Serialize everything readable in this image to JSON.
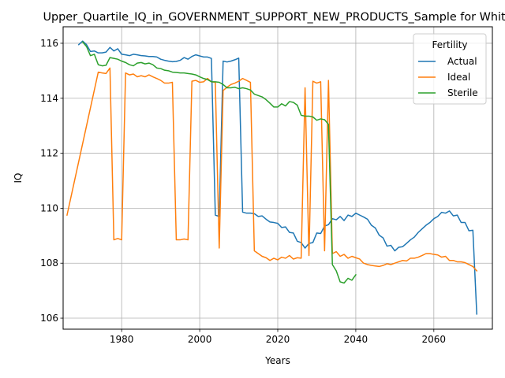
{
  "chart_data": {
    "type": "line",
    "title": "Upper_Quartile_IQ_in_GOVERNMENT_SUPPORT_NEW_PRODUCTS_Sample for White",
    "xlabel": "Years",
    "ylabel": "IQ",
    "xlim": [
      1965,
      2075
    ],
    "ylim": [
      105.6,
      116.6
    ],
    "xticks": [
      1980,
      2000,
      2020,
      2040,
      2060
    ],
    "yticks": [
      106,
      108,
      110,
      112,
      114,
      116
    ],
    "grid": true,
    "legend": {
      "title": "Fertility",
      "placement": "top-right"
    },
    "series": [
      {
        "name": "Actual",
        "color": "#1f77b4",
        "points": [
          [
            1969,
            115.95
          ],
          [
            1970,
            116.08
          ],
          [
            1971,
            115.95
          ],
          [
            1972,
            115.7
          ],
          [
            1973,
            115.72
          ],
          [
            1974,
            115.65
          ],
          [
            1975,
            115.65
          ],
          [
            1976,
            115.68
          ],
          [
            1977,
            115.85
          ],
          [
            1978,
            115.72
          ],
          [
            1979,
            115.8
          ],
          [
            1980,
            115.6
          ],
          [
            1981,
            115.58
          ],
          [
            1982,
            115.55
          ],
          [
            1983,
            115.6
          ],
          [
            1984,
            115.58
          ],
          [
            1985,
            115.55
          ],
          [
            1986,
            115.54
          ],
          [
            1987,
            115.52
          ],
          [
            1988,
            115.52
          ],
          [
            1989,
            115.5
          ],
          [
            1990,
            115.42
          ],
          [
            1991,
            115.38
          ],
          [
            1992,
            115.35
          ],
          [
            1993,
            115.33
          ],
          [
            1994,
            115.34
          ],
          [
            1995,
            115.38
          ],
          [
            1996,
            115.48
          ],
          [
            1997,
            115.42
          ],
          [
            1998,
            115.52
          ],
          [
            1999,
            115.58
          ],
          [
            2000,
            115.54
          ],
          [
            2001,
            115.5
          ],
          [
            2002,
            115.5
          ],
          [
            2003,
            115.45
          ],
          [
            2004,
            109.75
          ],
          [
            2005,
            109.7
          ],
          [
            2006,
            115.35
          ],
          [
            2007,
            115.32
          ],
          [
            2008,
            115.35
          ],
          [
            2009,
            115.4
          ],
          [
            2010,
            115.46
          ],
          [
            2011,
            109.86
          ],
          [
            2012,
            109.82
          ],
          [
            2013,
            109.82
          ],
          [
            2014,
            109.8
          ],
          [
            2015,
            109.7
          ],
          [
            2016,
            109.72
          ],
          [
            2017,
            109.6
          ],
          [
            2018,
            109.5
          ],
          [
            2019,
            109.48
          ],
          [
            2020,
            109.45
          ],
          [
            2021,
            109.3
          ],
          [
            2022,
            109.32
          ],
          [
            2023,
            109.12
          ],
          [
            2024,
            109.1
          ],
          [
            2025,
            108.8
          ],
          [
            2026,
            108.75
          ],
          [
            2027,
            108.55
          ],
          [
            2028,
            108.72
          ],
          [
            2029,
            108.75
          ],
          [
            2030,
            109.1
          ],
          [
            2031,
            109.08
          ],
          [
            2032,
            109.35
          ],
          [
            2033,
            109.4
          ],
          [
            2034,
            109.62
          ],
          [
            2035,
            109.58
          ],
          [
            2036,
            109.7
          ],
          [
            2037,
            109.55
          ],
          [
            2038,
            109.75
          ],
          [
            2039,
            109.7
          ],
          [
            2040,
            109.82
          ],
          [
            2041,
            109.75
          ],
          [
            2042,
            109.68
          ],
          [
            2043,
            109.6
          ],
          [
            2044,
            109.38
          ],
          [
            2045,
            109.28
          ],
          [
            2046,
            109.02
          ],
          [
            2047,
            108.92
          ],
          [
            2048,
            108.62
          ],
          [
            2049,
            108.65
          ],
          [
            2050,
            108.45
          ],
          [
            2051,
            108.58
          ],
          [
            2052,
            108.6
          ],
          [
            2053,
            108.72
          ],
          [
            2054,
            108.85
          ],
          [
            2055,
            108.95
          ],
          [
            2056,
            109.12
          ],
          [
            2057,
            109.25
          ],
          [
            2058,
            109.38
          ],
          [
            2059,
            109.48
          ],
          [
            2060,
            109.62
          ],
          [
            2061,
            109.7
          ],
          [
            2062,
            109.85
          ],
          [
            2063,
            109.82
          ],
          [
            2064,
            109.9
          ],
          [
            2065,
            109.72
          ],
          [
            2066,
            109.75
          ],
          [
            2067,
            109.48
          ],
          [
            2068,
            109.48
          ],
          [
            2069,
            109.18
          ],
          [
            2070,
            109.2
          ],
          [
            2071,
            106.15
          ]
        ]
      },
      {
        "name": "Ideal",
        "color": "#ff7f0e",
        "points": [
          [
            1966,
            109.75
          ],
          [
            1974,
            114.95
          ],
          [
            1975,
            114.92
          ],
          [
            1976,
            114.9
          ],
          [
            1977,
            115.1
          ],
          [
            1978,
            108.85
          ],
          [
            1979,
            108.9
          ],
          [
            1980,
            108.85
          ],
          [
            1981,
            114.92
          ],
          [
            1982,
            114.85
          ],
          [
            1983,
            114.88
          ],
          [
            1984,
            114.78
          ],
          [
            1985,
            114.82
          ],
          [
            1986,
            114.78
          ],
          [
            1987,
            114.85
          ],
          [
            1988,
            114.78
          ],
          [
            1989,
            114.72
          ],
          [
            1990,
            114.65
          ],
          [
            1991,
            114.55
          ],
          [
            1992,
            114.55
          ],
          [
            1993,
            114.58
          ],
          [
            1994,
            108.85
          ],
          [
            1995,
            108.85
          ],
          [
            1996,
            108.88
          ],
          [
            1997,
            108.85
          ],
          [
            1998,
            114.62
          ],
          [
            1999,
            114.65
          ],
          [
            2000,
            114.58
          ],
          [
            2001,
            114.6
          ],
          [
            2002,
            114.72
          ],
          [
            2003,
            114.6
          ],
          [
            2004,
            114.58
          ],
          [
            2005,
            108.55
          ],
          [
            2006,
            114.28
          ],
          [
            2007,
            114.4
          ],
          [
            2008,
            114.5
          ],
          [
            2009,
            114.55
          ],
          [
            2010,
            114.62
          ],
          [
            2011,
            114.72
          ],
          [
            2012,
            114.65
          ],
          [
            2013,
            114.58
          ],
          [
            2014,
            108.45
          ],
          [
            2015,
            108.35
          ],
          [
            2016,
            108.25
          ],
          [
            2017,
            108.2
          ],
          [
            2018,
            108.1
          ],
          [
            2019,
            108.18
          ],
          [
            2020,
            108.12
          ],
          [
            2021,
            108.22
          ],
          [
            2022,
            108.18
          ],
          [
            2023,
            108.28
          ],
          [
            2024,
            108.15
          ],
          [
            2025,
            108.2
          ],
          [
            2026,
            108.18
          ],
          [
            2027,
            114.38
          ],
          [
            2028,
            108.28
          ],
          [
            2029,
            114.62
          ],
          [
            2030,
            114.55
          ],
          [
            2031,
            114.6
          ],
          [
            2032,
            108.45
          ],
          [
            2033,
            114.65
          ],
          [
            2034,
            108.35
          ],
          [
            2035,
            108.42
          ],
          [
            2036,
            108.25
          ],
          [
            2037,
            108.32
          ],
          [
            2038,
            108.18
          ],
          [
            2039,
            108.25
          ],
          [
            2040,
            108.2
          ],
          [
            2041,
            108.15
          ],
          [
            2042,
            108.0
          ],
          [
            2043,
            107.95
          ],
          [
            2044,
            107.92
          ],
          [
            2045,
            107.9
          ],
          [
            2046,
            107.88
          ],
          [
            2047,
            107.92
          ],
          [
            2048,
            107.98
          ],
          [
            2049,
            107.95
          ],
          [
            2050,
            108.0
          ],
          [
            2051,
            108.05
          ],
          [
            2052,
            108.1
          ],
          [
            2053,
            108.08
          ],
          [
            2054,
            108.18
          ],
          [
            2055,
            108.18
          ],
          [
            2056,
            108.22
          ],
          [
            2057,
            108.28
          ],
          [
            2058,
            108.35
          ],
          [
            2059,
            108.35
          ],
          [
            2060,
            108.32
          ],
          [
            2061,
            108.3
          ],
          [
            2062,
            108.22
          ],
          [
            2063,
            108.25
          ],
          [
            2064,
            108.1
          ],
          [
            2065,
            108.1
          ],
          [
            2066,
            108.05
          ],
          [
            2067,
            108.05
          ],
          [
            2068,
            108.02
          ],
          [
            2069,
            107.95
          ],
          [
            2070,
            107.88
          ],
          [
            2071,
            107.72
          ]
        ]
      },
      {
        "name": "Sterile",
        "color": "#2ca02c",
        "points": [
          [
            1970,
            116.05
          ],
          [
            1971,
            115.88
          ],
          [
            1972,
            115.55
          ],
          [
            1973,
            115.6
          ],
          [
            1974,
            115.22
          ],
          [
            1975,
            115.18
          ],
          [
            1976,
            115.2
          ],
          [
            1977,
            115.48
          ],
          [
            1978,
            115.45
          ],
          [
            1979,
            115.42
          ],
          [
            1980,
            115.35
          ],
          [
            1981,
            115.3
          ],
          [
            1982,
            115.22
          ],
          [
            1983,
            115.18
          ],
          [
            1984,
            115.28
          ],
          [
            1985,
            115.3
          ],
          [
            1986,
            115.25
          ],
          [
            1987,
            115.28
          ],
          [
            1988,
            115.22
          ],
          [
            1989,
            115.1
          ],
          [
            1990,
            115.08
          ],
          [
            1991,
            115.02
          ],
          [
            1992,
            115.0
          ],
          [
            1993,
            114.95
          ],
          [
            1994,
            114.94
          ],
          [
            1995,
            114.92
          ],
          [
            1996,
            114.92
          ],
          [
            1997,
            114.9
          ],
          [
            1998,
            114.88
          ],
          [
            1999,
            114.85
          ],
          [
            2000,
            114.78
          ],
          [
            2001,
            114.72
          ],
          [
            2002,
            114.68
          ],
          [
            2003,
            114.6
          ],
          [
            2004,
            114.6
          ],
          [
            2005,
            114.58
          ],
          [
            2006,
            114.5
          ],
          [
            2007,
            114.38
          ],
          [
            2008,
            114.38
          ],
          [
            2009,
            114.4
          ],
          [
            2010,
            114.35
          ],
          [
            2011,
            114.38
          ],
          [
            2012,
            114.35
          ],
          [
            2013,
            114.3
          ],
          [
            2014,
            114.15
          ],
          [
            2015,
            114.1
          ],
          [
            2016,
            114.05
          ],
          [
            2017,
            113.95
          ],
          [
            2018,
            113.82
          ],
          [
            2019,
            113.68
          ],
          [
            2020,
            113.68
          ],
          [
            2021,
            113.8
          ],
          [
            2022,
            113.72
          ],
          [
            2023,
            113.88
          ],
          [
            2024,
            113.85
          ],
          [
            2025,
            113.75
          ],
          [
            2026,
            113.38
          ],
          [
            2027,
            113.35
          ],
          [
            2028,
            113.35
          ],
          [
            2029,
            113.32
          ],
          [
            2030,
            113.2
          ],
          [
            2031,
            113.25
          ],
          [
            2032,
            113.22
          ],
          [
            2033,
            113.05
          ],
          [
            2034,
            107.95
          ],
          [
            2035,
            107.72
          ],
          [
            2036,
            107.32
          ],
          [
            2037,
            107.28
          ],
          [
            2038,
            107.45
          ],
          [
            2039,
            107.38
          ],
          [
            2040,
            107.58
          ]
        ]
      }
    ]
  }
}
